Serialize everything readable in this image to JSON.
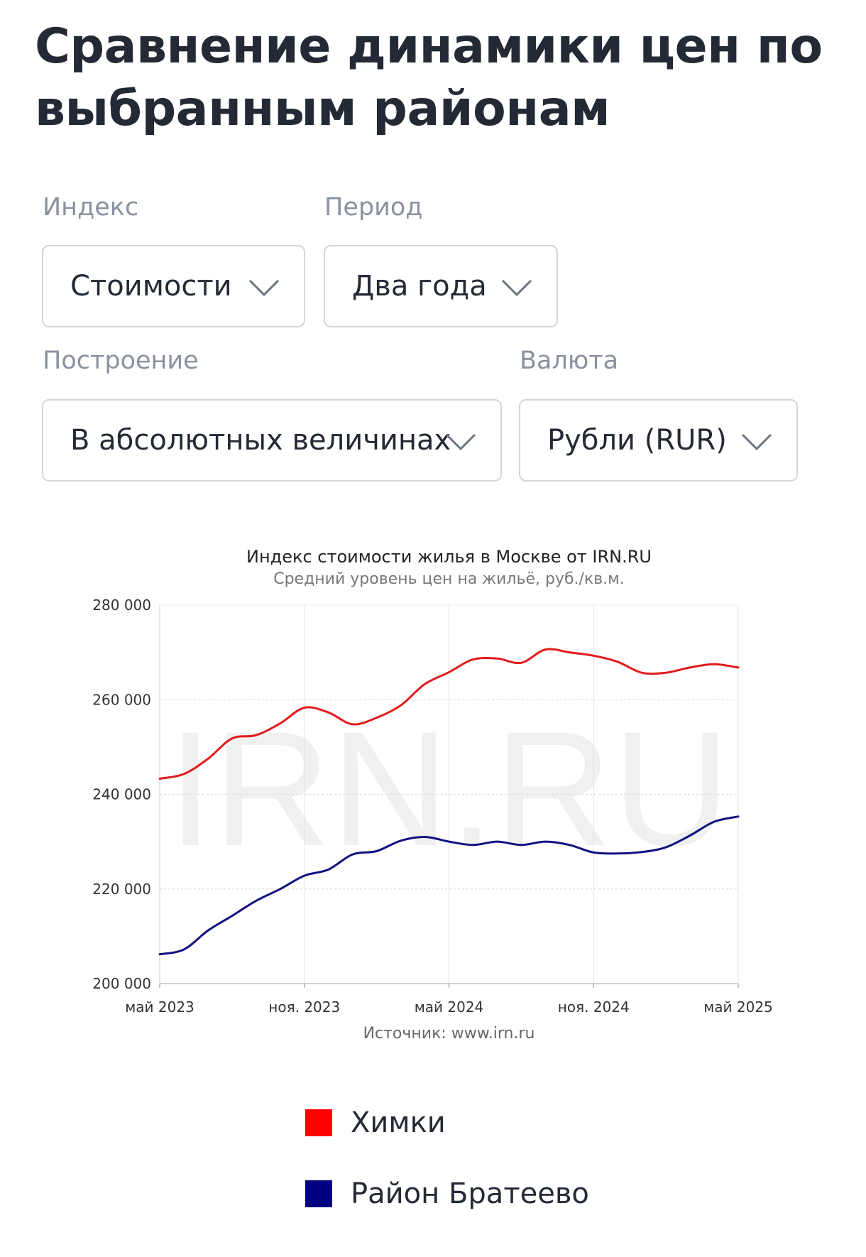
{
  "page": {
    "title": "Сравнение динамики цен по выбранным районам"
  },
  "filters": {
    "index": {
      "label": "Индекс",
      "value": "Стоимости"
    },
    "period": {
      "label": "Период",
      "value": "Два года"
    },
    "mode": {
      "label": "Построение",
      "value": "В абсолютных величинах"
    },
    "currency": {
      "label": "Валюта",
      "value": "Рубли (RUR)"
    }
  },
  "chart_data": {
    "type": "line",
    "title": "Индекс стоимости жилья в Москве от IRN.RU",
    "subtitle": "Средний уровень цен на жильё, руб./кв.м.",
    "source": "Источник: www.irn.ru",
    "watermark": "IRN.RU",
    "xlabel": "",
    "ylabel": "",
    "ylim": [
      200000,
      280000
    ],
    "y_ticks": [
      200000,
      220000,
      240000,
      260000,
      280000
    ],
    "y_tick_labels": [
      "200 000",
      "220 000",
      "240 000",
      "260 000",
      "280 000"
    ],
    "x_months_range": [
      "2023-05",
      "2025-05"
    ],
    "x_ticks": [
      "2023-05",
      "2023-11",
      "2024-05",
      "2024-11",
      "2025-05"
    ],
    "x_tick_labels": [
      "май 2023",
      "ноя. 2023",
      "май 2024",
      "ноя. 2024",
      "май 2025"
    ],
    "grid": true,
    "x": [
      "2023-05",
      "2023-06",
      "2023-07",
      "2023-08",
      "2023-09",
      "2023-10",
      "2023-11",
      "2023-12",
      "2024-01",
      "2024-02",
      "2024-03",
      "2024-04",
      "2024-05",
      "2024-06",
      "2024-07",
      "2024-08",
      "2024-09",
      "2024-10",
      "2024-11",
      "2024-12",
      "2025-01",
      "2025-02",
      "2025-03",
      "2025-04",
      "2025-05"
    ],
    "series": [
      {
        "name": "Химки",
        "color": "#e21b1b",
        "values": [
          243300,
          244300,
          247500,
          251800,
          252500,
          255000,
          258300,
          257300,
          254800,
          256200,
          258800,
          263300,
          265800,
          268500,
          268700,
          267800,
          270600,
          270000,
          269300,
          268000,
          265700,
          265700,
          266800,
          267500,
          266800
        ]
      },
      {
        "name": "Район Братеево",
        "color": "#111180",
        "values": [
          206200,
          207200,
          211200,
          214300,
          217500,
          220000,
          222800,
          224100,
          227300,
          228000,
          230200,
          231000,
          230000,
          229300,
          230000,
          229300,
          230000,
          229300,
          227700,
          227500,
          227800,
          228800,
          231300,
          234200,
          235300
        ]
      }
    ]
  },
  "legend": {
    "items": [
      {
        "label": "Химки",
        "color": "#ff0000"
      },
      {
        "label": "Район Братеево",
        "color": "#000080"
      }
    ]
  }
}
